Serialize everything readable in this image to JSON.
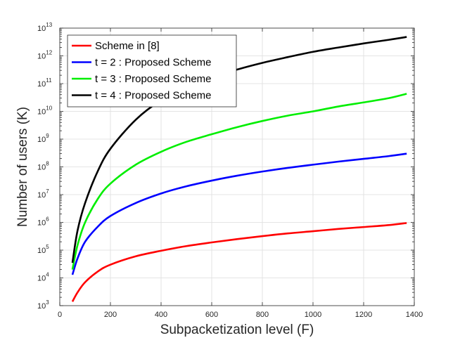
{
  "chart_data": {
    "type": "line",
    "title": "",
    "xlabel": "Subpacketization level (F)",
    "ylabel": "Number of users (K)",
    "xlim": [
      0,
      1400
    ],
    "ylim_log10": [
      3,
      13
    ],
    "yscale": "log",
    "grid": true,
    "legend_position": "top-left",
    "x_ticks": [
      "0",
      "200",
      "400",
      "600",
      "800",
      "1000",
      "1200",
      "1400"
    ],
    "y_tick_exponents": [
      "3",
      "4",
      "5",
      "6",
      "7",
      "8",
      "9",
      "10",
      "11",
      "12",
      "13"
    ],
    "y_tick_base": "10",
    "series": [
      {
        "name": "Scheme in [8]",
        "color": "#ff0000",
        "x": [
          50,
          70,
          100,
          150,
          200,
          300,
          400,
          500,
          600,
          700,
          800,
          900,
          1000,
          1100,
          1200,
          1300,
          1370
        ],
        "y": [
          1400,
          3000,
          7000,
          17000,
          30000,
          60000,
          95000,
          140000,
          190000,
          250000,
          320000,
          400000,
          480000,
          580000,
          680000,
          800000,
          950000
        ]
      },
      {
        "name": "t = 2 : Proposed Scheme",
        "color": "#0000ff",
        "x": [
          50,
          70,
          100,
          150,
          200,
          300,
          400,
          500,
          600,
          700,
          800,
          900,
          1000,
          1100,
          1200,
          1300,
          1370
        ],
        "y": [
          13000,
          50000,
          200000,
          700000,
          1700000,
          5000000,
          11000000,
          20000000,
          32000000,
          48000000,
          68000000,
          92000000,
          120000000,
          155000000,
          195000000,
          245000000,
          300000000
        ]
      },
      {
        "name": "t = 3 : Proposed Scheme",
        "color": "#00ee00",
        "x": [
          50,
          70,
          100,
          150,
          200,
          300,
          400,
          500,
          600,
          700,
          800,
          900,
          1000,
          1100,
          1200,
          1300,
          1370
        ],
        "y": [
          20000,
          150000,
          1000000,
          7000000,
          25000000,
          120000000,
          350000000,
          800000000,
          1500000000,
          2700000000,
          4500000000,
          7000000000,
          10000000000,
          15000000000,
          21000000000,
          30000000000,
          43000000000
        ]
      },
      {
        "name": "t = 4 : Proposed Scheme",
        "color": "#000000",
        "x": [
          50,
          70,
          100,
          150,
          200,
          300,
          400,
          500,
          600,
          700,
          800,
          900,
          1000,
          1100,
          1200,
          1300,
          1370
        ],
        "y": [
          35000,
          500000,
          5000000,
          70000000,
          450000000,
          5000000000,
          25000000000,
          70000000000,
          160000000000,
          320000000000,
          560000000000,
          900000000000,
          1400000000000,
          2000000000000,
          2800000000000,
          3800000000000,
          4800000000000
        ]
      }
    ]
  }
}
